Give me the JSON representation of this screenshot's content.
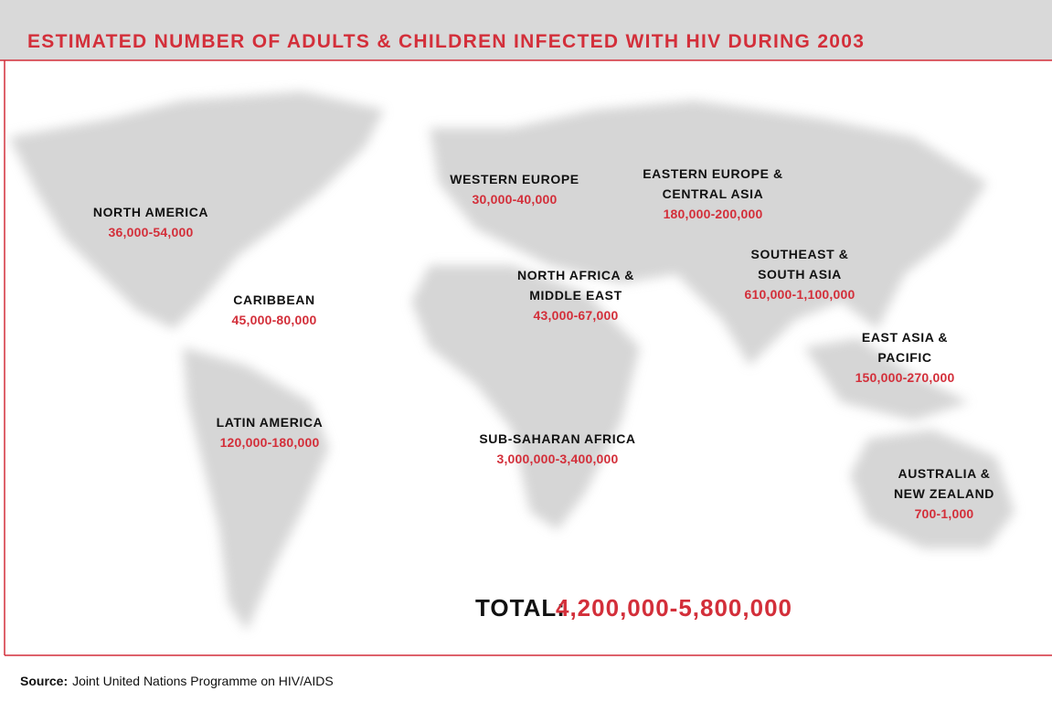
{
  "header": {
    "title": "ESTIMATED NUMBER OF ADULTS & CHILDREN INFECTED WITH HIV DURING 2003"
  },
  "regions": [
    {
      "name_lines": [
        "NORTH AMERICA"
      ],
      "range": "36,000-54,000"
    },
    {
      "name_lines": [
        "WESTERN EUROPE"
      ],
      "range": "30,000-40,000"
    },
    {
      "name_lines": [
        "EASTERN EUROPE &",
        "CENTRAL ASIA"
      ],
      "range": "180,000-200,000"
    },
    {
      "name_lines": [
        "CARIBBEAN"
      ],
      "range": "45,000-80,000"
    },
    {
      "name_lines": [
        "NORTH AFRICA &",
        "MIDDLE EAST"
      ],
      "range": "43,000-67,000"
    },
    {
      "name_lines": [
        "SOUTHEAST &",
        "SOUTH ASIA"
      ],
      "range": "610,000-1,100,000"
    },
    {
      "name_lines": [
        "EAST ASIA &",
        "PACIFIC"
      ],
      "range": "150,000-270,000"
    },
    {
      "name_lines": [
        "LATIN AMERICA"
      ],
      "range": "120,000-180,000"
    },
    {
      "name_lines": [
        "SUB-SAHARAN AFRICA"
      ],
      "range": "3,000,000-3,400,000"
    },
    {
      "name_lines": [
        "AUSTRALIA &",
        "NEW ZEALAND"
      ],
      "range": "700-1,000"
    }
  ],
  "total": {
    "label": "TOTAL:",
    "value": "4,200,000-5,800,000"
  },
  "source": {
    "label": "Source:",
    "text": "Joint United Nations Programme on HIV/AIDS"
  }
}
